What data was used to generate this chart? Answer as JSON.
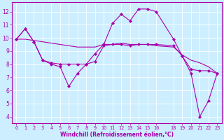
{
  "xlabel": "Windchill (Refroidissement éolien,°C)",
  "background_color": "#cceeff",
  "grid_color": "#aaddcc",
  "line_color": "#aa00aa",
  "x_ticks": [
    0,
    1,
    2,
    3,
    4,
    5,
    6,
    7,
    8,
    9,
    10,
    11,
    12,
    13,
    14,
    15,
    16,
    18,
    19,
    20,
    21,
    22,
    23
  ],
  "y_ticks": [
    4,
    5,
    6,
    7,
    8,
    9,
    10,
    11,
    12
  ],
  "ylim": [
    3.5,
    12.7
  ],
  "xlim": [
    -0.5,
    23.5
  ],
  "series": [
    {
      "x": [
        0,
        1,
        2,
        3,
        4,
        5,
        6,
        7,
        8,
        9,
        10,
        11,
        12,
        13,
        14,
        15,
        16,
        18,
        19,
        20,
        21,
        22,
        23
      ],
      "y": [
        9.9,
        10.7,
        9.7,
        8.3,
        8.0,
        7.8,
        6.3,
        7.3,
        8.0,
        8.8,
        9.5,
        11.1,
        11.8,
        11.3,
        12.2,
        12.2,
        12.0,
        9.9,
        8.6,
        7.3,
        4.0,
        5.2,
        7.3
      ],
      "marker": "D",
      "lw": 0.8
    },
    {
      "x": [
        0,
        1,
        2,
        3,
        4,
        5,
        6,
        7,
        8,
        9,
        10,
        11,
        12,
        13,
        14,
        15,
        16,
        18,
        19,
        20,
        21,
        22,
        23
      ],
      "y": [
        9.9,
        10.7,
        9.7,
        8.3,
        8.1,
        8.0,
        8.0,
        8.0,
        8.0,
        8.2,
        9.4,
        9.5,
        9.5,
        9.4,
        9.5,
        9.5,
        9.5,
        9.4,
        8.6,
        7.6,
        7.5,
        7.5,
        7.3
      ],
      "marker": "D",
      "lw": 0.8
    },
    {
      "x": [
        0,
        1,
        2,
        3,
        4,
        5,
        6,
        7,
        8,
        9,
        10,
        11,
        12,
        13,
        14,
        15,
        16,
        18,
        19,
        20,
        21,
        22,
        23
      ],
      "y": [
        9.9,
        9.9,
        9.8,
        9.7,
        9.6,
        9.5,
        9.4,
        9.3,
        9.3,
        9.3,
        9.5,
        9.5,
        9.6,
        9.5,
        9.5,
        9.5,
        9.4,
        9.3,
        8.7,
        8.3,
        8.1,
        7.8,
        7.3
      ],
      "marker": null,
      "lw": 0.8
    }
  ]
}
